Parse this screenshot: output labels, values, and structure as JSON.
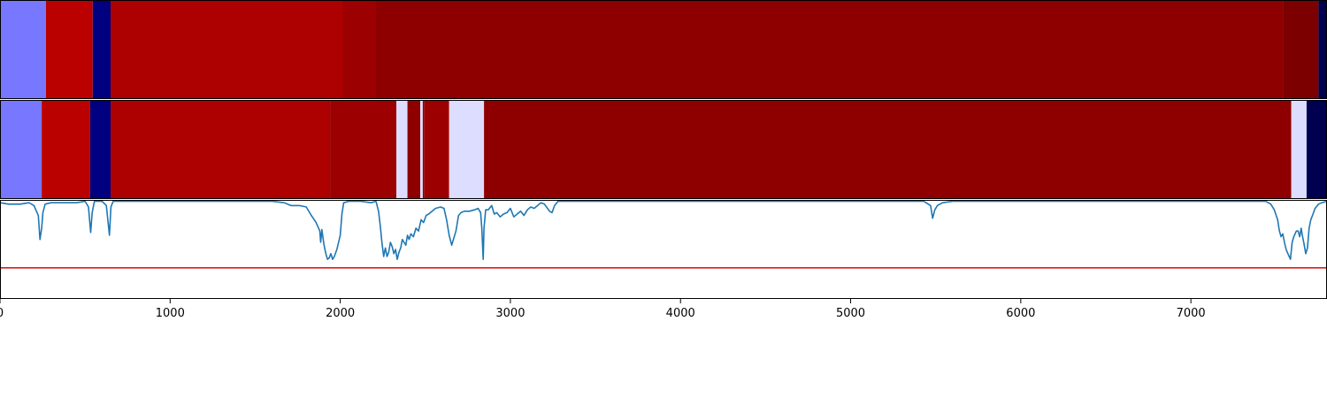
{
  "chart_data": [
    {
      "type": "heatmap",
      "xlim": [
        0,
        7800
      ],
      "segments": [
        {
          "start": 0,
          "end": 270,
          "color": "#7777ff"
        },
        {
          "start": 270,
          "end": 545,
          "color": "#bb0000"
        },
        {
          "start": 545,
          "end": 650,
          "color": "#000080"
        },
        {
          "start": 650,
          "end": 2015,
          "color": "#ad0000"
        },
        {
          "start": 2015,
          "end": 2210,
          "color": "#9c0000"
        },
        {
          "start": 2210,
          "end": 7545,
          "color": "#8e0000"
        },
        {
          "start": 7545,
          "end": 7750,
          "color": "#7c0000"
        },
        {
          "start": 7750,
          "end": 7800,
          "color": "#000050"
        }
      ]
    },
    {
      "type": "heatmap",
      "xlim": [
        0,
        7800
      ],
      "segments": [
        {
          "start": 0,
          "end": 245,
          "color": "#7777ff"
        },
        {
          "start": 245,
          "end": 530,
          "color": "#bb0000"
        },
        {
          "start": 530,
          "end": 650,
          "color": "#000080"
        },
        {
          "start": 650,
          "end": 1940,
          "color": "#ad0000"
        },
        {
          "start": 1940,
          "end": 2330,
          "color": "#9c0000"
        },
        {
          "start": 2330,
          "end": 2395,
          "color": "#ddddff"
        },
        {
          "start": 2395,
          "end": 2470,
          "color": "#8e0000"
        },
        {
          "start": 2470,
          "end": 2485,
          "color": "#ddddff"
        },
        {
          "start": 2485,
          "end": 2495,
          "color": "#8e0000"
        },
        {
          "start": 2495,
          "end": 2640,
          "color": "#9c0000"
        },
        {
          "start": 2640,
          "end": 2845,
          "color": "#ddddff"
        },
        {
          "start": 2845,
          "end": 7590,
          "color": "#8e0000"
        },
        {
          "start": 7590,
          "end": 7680,
          "color": "#ddddff"
        },
        {
          "start": 7680,
          "end": 7800,
          "color": "#000050"
        }
      ]
    },
    {
      "type": "line",
      "xlim": [
        0,
        7800
      ],
      "ylim": [
        -0.7,
        0.0
      ],
      "xticks": [
        0,
        1000,
        2000,
        3000,
        4000,
        5000,
        6000,
        7000
      ],
      "xtick_labels": [
        "0",
        "1000",
        "2000",
        "3000",
        "4000",
        "5000",
        "6000",
        "7000"
      ],
      "threshold": {
        "value": -0.48,
        "color": "#e41a1c"
      },
      "series": [
        {
          "color": "#1f77b4",
          "points": [
            [
              0,
              -0.02
            ],
            [
              50,
              -0.03
            ],
            [
              120,
              -0.03
            ],
            [
              170,
              -0.02
            ],
            [
              200,
              -0.04
            ],
            [
              210,
              -0.07
            ],
            [
              225,
              -0.11
            ],
            [
              235,
              -0.28
            ],
            [
              245,
              -0.2
            ],
            [
              252,
              -0.09
            ],
            [
              265,
              -0.03
            ],
            [
              300,
              -0.02
            ],
            [
              380,
              -0.02
            ],
            [
              450,
              -0.02
            ],
            [
              500,
              -0.01
            ],
            [
              520,
              -0.05
            ],
            [
              533,
              -0.23
            ],
            [
              542,
              -0.09
            ],
            [
              555,
              -0.01
            ],
            [
              600,
              -0.01
            ],
            [
              625,
              -0.04
            ],
            [
              643,
              -0.25
            ],
            [
              652,
              -0.05
            ],
            [
              665,
              -0.01
            ],
            [
              730,
              -0.01
            ],
            [
              900,
              -0.01
            ],
            [
              1100,
              -0.01
            ],
            [
              1300,
              -0.01
            ],
            [
              1450,
              -0.01
            ],
            [
              1600,
              -0.01
            ],
            [
              1670,
              -0.02
            ],
            [
              1710,
              -0.04
            ],
            [
              1760,
              -0.04
            ],
            [
              1800,
              -0.05
            ],
            [
              1830,
              -0.11
            ],
            [
              1858,
              -0.16
            ],
            [
              1880,
              -0.22
            ],
            [
              1885,
              -0.3
            ],
            [
              1892,
              -0.21
            ],
            [
              1905,
              -0.32
            ],
            [
              1915,
              -0.38
            ],
            [
              1925,
              -0.42
            ],
            [
              1935,
              -0.41
            ],
            [
              1945,
              -0.38
            ],
            [
              1955,
              -0.42
            ],
            [
              1965,
              -0.4
            ],
            [
              1980,
              -0.35
            ],
            [
              2000,
              -0.25
            ],
            [
              2010,
              -0.1
            ],
            [
              2020,
              -0.02
            ],
            [
              2050,
              -0.01
            ],
            [
              2120,
              -0.01
            ],
            [
              2180,
              -0.02
            ],
            [
              2210,
              -0.01
            ],
            [
              2225,
              -0.08
            ],
            [
              2235,
              -0.18
            ],
            [
              2245,
              -0.3
            ],
            [
              2255,
              -0.4
            ],
            [
              2265,
              -0.34
            ],
            [
              2275,
              -0.4
            ],
            [
              2285,
              -0.37
            ],
            [
              2295,
              -0.3
            ],
            [
              2305,
              -0.33
            ],
            [
              2315,
              -0.38
            ],
            [
              2325,
              -0.35
            ],
            [
              2335,
              -0.42
            ],
            [
              2345,
              -0.37
            ],
            [
              2355,
              -0.34
            ],
            [
              2365,
              -0.28
            ],
            [
              2375,
              -0.3
            ],
            [
              2385,
              -0.32
            ],
            [
              2395,
              -0.25
            ],
            [
              2405,
              -0.28
            ],
            [
              2415,
              -0.24
            ],
            [
              2430,
              -0.26
            ],
            [
              2445,
              -0.2
            ],
            [
              2460,
              -0.22
            ],
            [
              2475,
              -0.14
            ],
            [
              2490,
              -0.16
            ],
            [
              2505,
              -0.11
            ],
            [
              2520,
              -0.1
            ],
            [
              2540,
              -0.08
            ],
            [
              2560,
              -0.06
            ],
            [
              2590,
              -0.05
            ],
            [
              2610,
              -0.06
            ],
            [
              2625,
              -0.14
            ],
            [
              2640,
              -0.25
            ],
            [
              2655,
              -0.32
            ],
            [
              2665,
              -0.28
            ],
            [
              2680,
              -0.22
            ],
            [
              2695,
              -0.11
            ],
            [
              2710,
              -0.09
            ],
            [
              2730,
              -0.08
            ],
            [
              2760,
              -0.08
            ],
            [
              2790,
              -0.07
            ],
            [
              2810,
              -0.06
            ],
            [
              2825,
              -0.09
            ],
            [
              2832,
              -0.2
            ],
            [
              2840,
              -0.42
            ],
            [
              2845,
              -0.2
            ],
            [
              2855,
              -0.07
            ],
            [
              2870,
              -0.07
            ],
            [
              2890,
              -0.04
            ],
            [
              2905,
              -0.1
            ],
            [
              2920,
              -0.09
            ],
            [
              2940,
              -0.12
            ],
            [
              2960,
              -0.1
            ],
            [
              2980,
              -0.09
            ],
            [
              3000,
              -0.06
            ],
            [
              3020,
              -0.12
            ],
            [
              3040,
              -0.1
            ],
            [
              3060,
              -0.08
            ],
            [
              3080,
              -0.11
            ],
            [
              3100,
              -0.07
            ],
            [
              3120,
              -0.05
            ],
            [
              3140,
              -0.06
            ],
            [
              3160,
              -0.04
            ],
            [
              3180,
              -0.02
            ],
            [
              3200,
              -0.03
            ],
            [
              3230,
              -0.08
            ],
            [
              3245,
              -0.09
            ],
            [
              3260,
              -0.04
            ],
            [
              3280,
              -0.01
            ],
            [
              3350,
              -0.01
            ],
            [
              3500,
              -0.01
            ],
            [
              3700,
              -0.01
            ],
            [
              4000,
              -0.01
            ],
            [
              4300,
              -0.01
            ],
            [
              4600,
              -0.01
            ],
            [
              4900,
              -0.01
            ],
            [
              5200,
              -0.01
            ],
            [
              5350,
              -0.01
            ],
            [
              5430,
              -0.01
            ],
            [
              5470,
              -0.04
            ],
            [
              5482,
              -0.13
            ],
            [
              5495,
              -0.07
            ],
            [
              5510,
              -0.04
            ],
            [
              5540,
              -0.02
            ],
            [
              5600,
              -0.01
            ],
            [
              5700,
              -0.01
            ],
            [
              5900,
              -0.01
            ],
            [
              6100,
              -0.01
            ],
            [
              6400,
              -0.01
            ],
            [
              6700,
              -0.01
            ],
            [
              7000,
              -0.01
            ],
            [
              7200,
              -0.01
            ],
            [
              7350,
              -0.01
            ],
            [
              7440,
              -0.01
            ],
            [
              7470,
              -0.03
            ],
            [
              7490,
              -0.07
            ],
            [
              7510,
              -0.14
            ],
            [
              7520,
              -0.22
            ],
            [
              7530,
              -0.26
            ],
            [
              7540,
              -0.24
            ],
            [
              7550,
              -0.3
            ],
            [
              7560,
              -0.35
            ],
            [
              7570,
              -0.38
            ],
            [
              7585,
              -0.42
            ],
            [
              7595,
              -0.3
            ],
            [
              7605,
              -0.26
            ],
            [
              7620,
              -0.22
            ],
            [
              7630,
              -0.22
            ],
            [
              7640,
              -0.26
            ],
            [
              7648,
              -0.2
            ],
            [
              7655,
              -0.25
            ],
            [
              7665,
              -0.31
            ],
            [
              7675,
              -0.38
            ],
            [
              7685,
              -0.34
            ],
            [
              7695,
              -0.2
            ],
            [
              7705,
              -0.14
            ],
            [
              7718,
              -0.1
            ],
            [
              7730,
              -0.06
            ],
            [
              7750,
              -0.03
            ],
            [
              7770,
              -0.02
            ],
            [
              7800,
              -0.01
            ]
          ]
        }
      ]
    }
  ]
}
